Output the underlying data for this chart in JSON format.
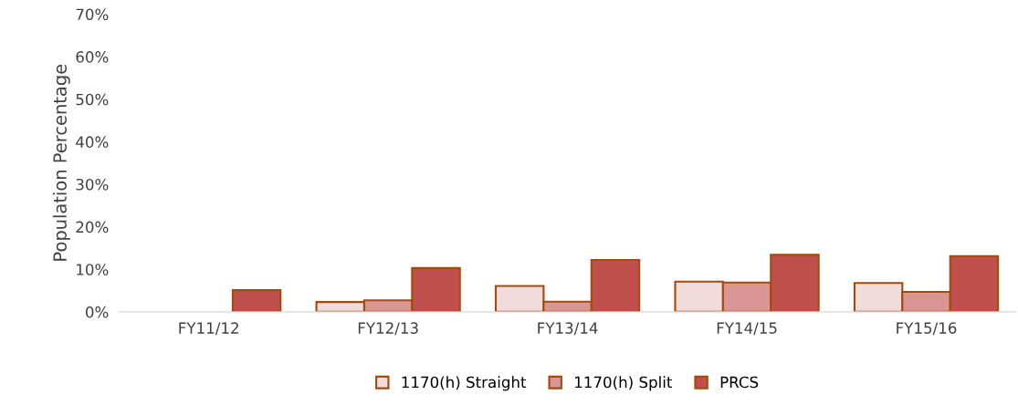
{
  "chart_data": {
    "type": "bar",
    "ylabel": "Population Percentage",
    "categories": [
      "FY11/12",
      "FY12/13",
      "FY13/14",
      "FY14/15",
      "FY15/16"
    ],
    "series": [
      {
        "name": "1170(h) Straight",
        "color": "#f2dcdb",
        "values": [
          null,
          2.3,
          6.1,
          7.1,
          6.8
        ]
      },
      {
        "name": "1170(h) Split",
        "color": "#d99694",
        "values": [
          null,
          2.7,
          2.4,
          6.9,
          4.7
        ]
      },
      {
        "name": "PRCS",
        "color": "#c0504d",
        "values": [
          5.1,
          10.3,
          12.2,
          13.4,
          13.1
        ]
      }
    ],
    "ylim": [
      0,
      70
    ],
    "yticks": [
      {
        "value": 0,
        "label": "0%"
      },
      {
        "value": 10,
        "label": "10%"
      },
      {
        "value": 20,
        "label": "20%"
      },
      {
        "value": 30,
        "label": "30%"
      },
      {
        "value": 40,
        "label": "40%"
      },
      {
        "value": 50,
        "label": "50%"
      },
      {
        "value": 60,
        "label": "60%"
      },
      {
        "value": 70,
        "label": "70%"
      }
    ],
    "grid": false,
    "legend": "bottom"
  }
}
